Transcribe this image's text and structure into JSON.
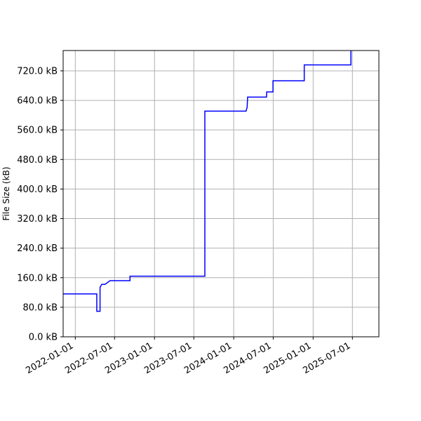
{
  "chart_data": {
    "type": "line",
    "title": "",
    "xlabel": "",
    "ylabel": "File Size (kB)",
    "x_axis_type": "date",
    "xlim": [
      "2021-11-06",
      "2025-10-31"
    ],
    "ylim": [
      0,
      775
    ],
    "grid": true,
    "line_style": "steps",
    "colors": {
      "series": "#0000ff",
      "grid": "#b0b0b0",
      "axis": "#000000"
    },
    "x_ticks": [
      {
        "value": "2022-01-01",
        "label": "2022-01-01"
      },
      {
        "value": "2022-07-01",
        "label": "2022-07-01"
      },
      {
        "value": "2023-01-01",
        "label": "2023-01-01"
      },
      {
        "value": "2023-07-01",
        "label": "2023-07-01"
      },
      {
        "value": "2024-01-01",
        "label": "2024-01-01"
      },
      {
        "value": "2024-07-01",
        "label": "2024-07-01"
      },
      {
        "value": "2025-01-01",
        "label": "2025-01-01"
      },
      {
        "value": "2025-07-01",
        "label": "2025-07-01"
      }
    ],
    "y_ticks": [
      {
        "value": 0,
        "label": "0.0 kB"
      },
      {
        "value": 80,
        "label": "80.0 kB"
      },
      {
        "value": 160,
        "label": "160.0 kB"
      },
      {
        "value": 240,
        "label": "240.0 kB"
      },
      {
        "value": 320,
        "label": "320.0 kB"
      },
      {
        "value": 400,
        "label": "400.0 kB"
      },
      {
        "value": 480,
        "label": "480.0 kB"
      },
      {
        "value": 560,
        "label": "560.0 kB"
      },
      {
        "value": 640,
        "label": "640.0 kB"
      },
      {
        "value": 720,
        "label": "720.0 kB"
      }
    ],
    "series": [
      {
        "x": [
          "2021-11-06",
          "2022-04-10",
          "2022-04-10",
          "2022-04-25",
          "2022-04-25",
          "2022-05-03",
          "2022-05-18",
          "2022-06-10",
          "2022-09-10",
          "2022-09-10",
          "2023-08-21",
          "2023-08-21",
          "2024-02-27",
          "2024-03-03",
          "2024-03-05",
          "2024-05-31",
          "2024-06-01",
          "2024-06-30",
          "2024-06-30",
          "2024-11-21",
          "2024-11-21",
          "2025-06-24",
          "2025-06-24"
        ],
        "y": [
          116,
          116,
          69,
          69,
          134,
          142,
          142,
          152,
          152,
          164,
          164,
          611,
          611,
          622,
          649,
          649,
          663,
          663,
          693,
          693,
          736,
          736,
          780
        ]
      }
    ]
  }
}
